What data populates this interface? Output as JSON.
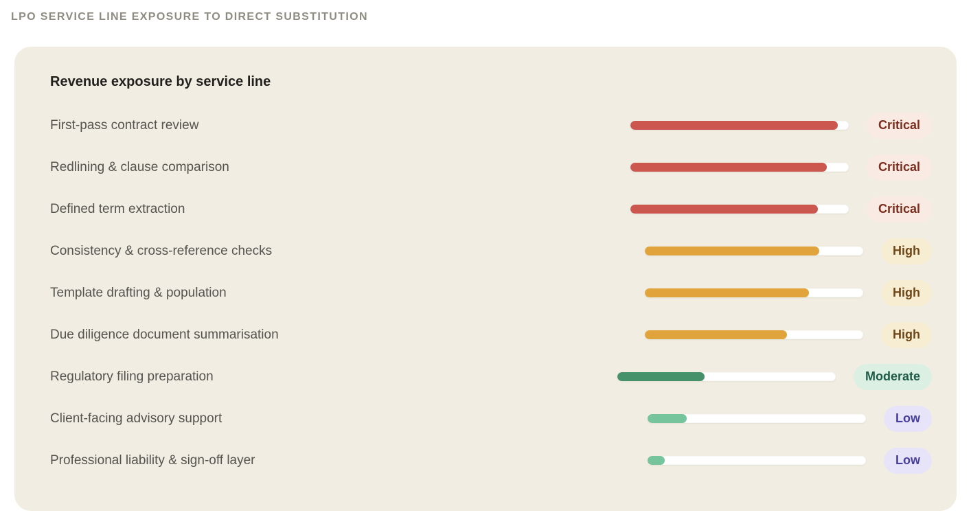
{
  "header": {
    "title": "LPO SERVICE LINE EXPOSURE TO DIRECT SUBSTITUTION"
  },
  "card": {
    "title": "Revenue exposure by service line",
    "background": "#f1ede2"
  },
  "severity_styles": {
    "critical": {
      "bar": "#cb574e",
      "badge_bg": "#f9eae4",
      "badge_text": "#7b2e1d"
    },
    "high": {
      "bar": "#e1a33c",
      "badge_bg": "#f7edd2",
      "badge_text": "#6f4617"
    },
    "moderate": {
      "bar": "#44916a",
      "badge_bg": "#dcefe3",
      "badge_text": "#1d5b47"
    },
    "low": {
      "bar": "#76c49c",
      "badge_bg": "#e7e4fa",
      "badge_text": "#473f9c"
    }
  },
  "rows": [
    {
      "label": "First-pass contract review",
      "severity": "critical",
      "badge": "Critical",
      "value_pct": 95
    },
    {
      "label": "Redlining & clause comparison",
      "severity": "critical",
      "badge": "Critical",
      "value_pct": 90
    },
    {
      "label": "Defined term extraction",
      "severity": "critical",
      "badge": "Critical",
      "value_pct": 86
    },
    {
      "label": "Consistency & cross-reference checks",
      "severity": "high",
      "badge": "High",
      "value_pct": 80
    },
    {
      "label": "Template drafting & population",
      "severity": "high",
      "badge": "High",
      "value_pct": 75
    },
    {
      "label": "Due diligence document summarisation",
      "severity": "high",
      "badge": "High",
      "value_pct": 65
    },
    {
      "label": "Regulatory filing preparation",
      "severity": "moderate",
      "badge": "Moderate",
      "value_pct": 40
    },
    {
      "label": "Client-facing advisory support",
      "severity": "low",
      "badge": "Low",
      "value_pct": 18
    },
    {
      "label": "Professional liability & sign-off layer",
      "severity": "low",
      "badge": "Low",
      "value_pct": 8
    }
  ],
  "chart_data": {
    "type": "bar",
    "orientation": "horizontal",
    "title": "Revenue exposure by service line",
    "categories": [
      "First-pass contract review",
      "Redlining & clause comparison",
      "Defined term extraction",
      "Consistency & cross-reference checks",
      "Template drafting & population",
      "Due diligence document summarisation",
      "Regulatory filing preparation",
      "Client-facing advisory support",
      "Professional liability & sign-off layer"
    ],
    "values": [
      95,
      90,
      86,
      80,
      75,
      65,
      40,
      18,
      8
    ],
    "values_are_estimates": true,
    "bar_labels": [
      "Critical",
      "Critical",
      "Critical",
      "High",
      "High",
      "High",
      "Moderate",
      "Low",
      "Low"
    ],
    "xlabel": "",
    "ylabel": "",
    "xlim": [
      0,
      100
    ],
    "grid": false,
    "legend_position": "none"
  }
}
